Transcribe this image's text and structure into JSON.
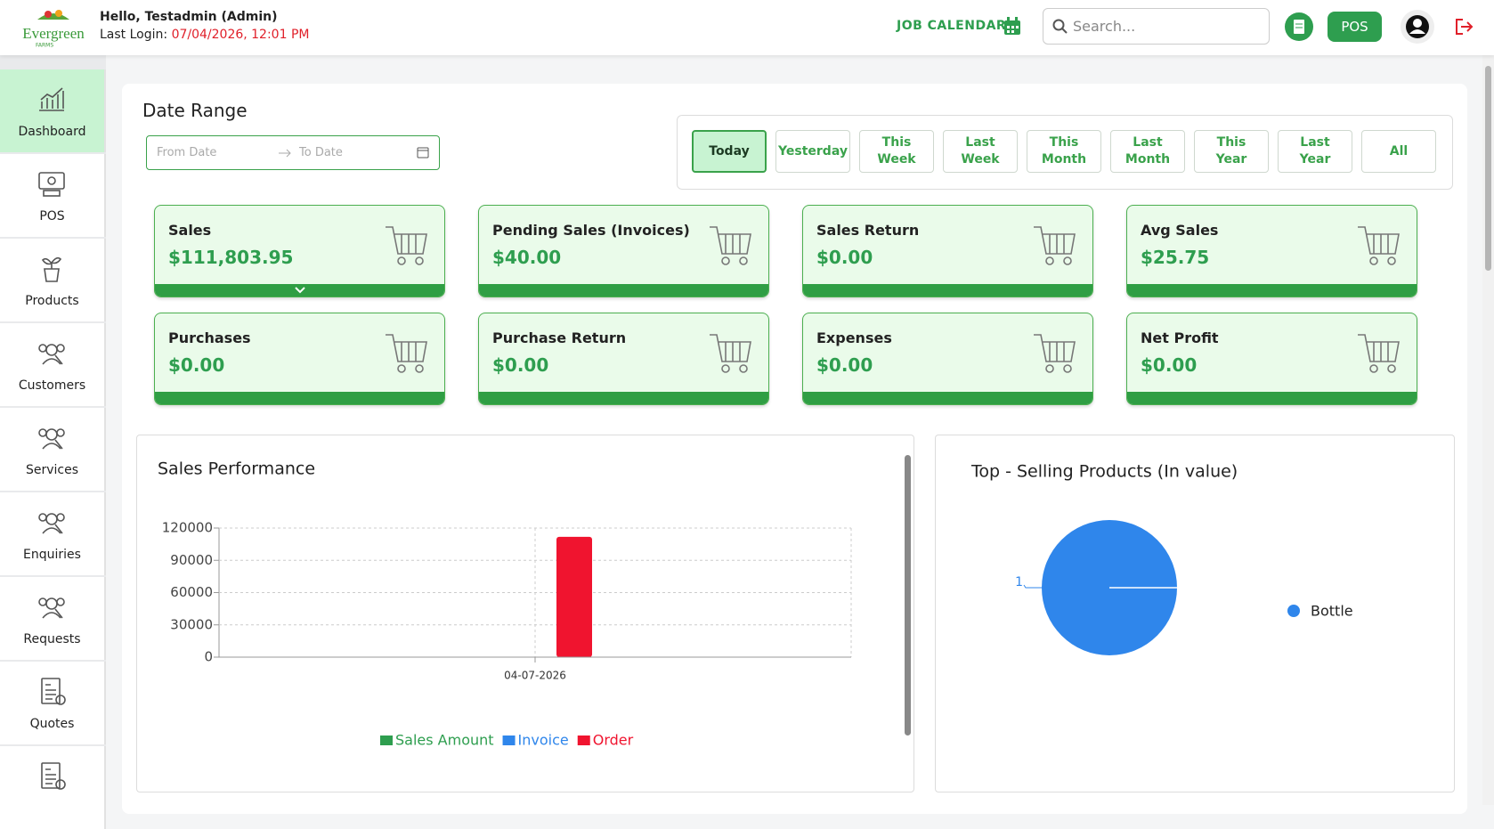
{
  "header": {
    "logo": {
      "name": "Evergreen",
      "sub": "FARMS"
    },
    "greeting": "Hello, Testadmin (Admin)",
    "last_login_label": "Last Login:",
    "last_login_value": "07/04/2026, 12:01 PM",
    "job_calendar": "JOB CALENDAR",
    "search_placeholder": "Search...",
    "pos_button": "POS"
  },
  "sidebar": [
    "Dashboard",
    "POS",
    "Products",
    "Customers",
    "Services",
    "Enquiries",
    "Requests",
    "Quotes"
  ],
  "date_range": {
    "title": "Date Range",
    "from_placeholder": "From Date",
    "to_placeholder": "To Date",
    "buttons": [
      "Today",
      "Yesterday",
      "This Week",
      "Last Week",
      "This Month",
      "Last Month",
      "This Year",
      "Last Year",
      "All"
    ]
  },
  "cards": [
    {
      "title": "Sales",
      "value": "$111,803.95"
    },
    {
      "title": "Pending Sales (Invoices)",
      "value": "$40.00"
    },
    {
      "title": "Sales Return",
      "value": "$0.00"
    },
    {
      "title": "Avg Sales",
      "value": "$25.75"
    },
    {
      "title": "Purchases",
      "value": "$0.00"
    },
    {
      "title": "Purchase Return",
      "value": "$0.00"
    },
    {
      "title": "Expenses",
      "value": "$0.00"
    },
    {
      "title": "Net Profit",
      "value": "$0.00"
    }
  ],
  "chart_data": [
    {
      "type": "bar",
      "title": "Sales Performance",
      "categories": [
        "04-07-2026"
      ],
      "series": [
        {
          "name": "Sales Amount",
          "color": "#2e9e4f",
          "values": [
            0
          ]
        },
        {
          "name": "Invoice",
          "color": "#2f86eb",
          "values": [
            0
          ]
        },
        {
          "name": "Order",
          "color": "#f0142f",
          "values": [
            111800
          ]
        }
      ],
      "ylim": [
        0,
        120000
      ],
      "yticks": [
        0,
        30000,
        60000,
        90000,
        120000
      ],
      "grid": true
    },
    {
      "type": "pie",
      "title": "Top - Selling Products (In value)",
      "categories": [
        "Bottle"
      ],
      "values": [
        1
      ],
      "colors": [
        "#2f86eb"
      ]
    }
  ]
}
